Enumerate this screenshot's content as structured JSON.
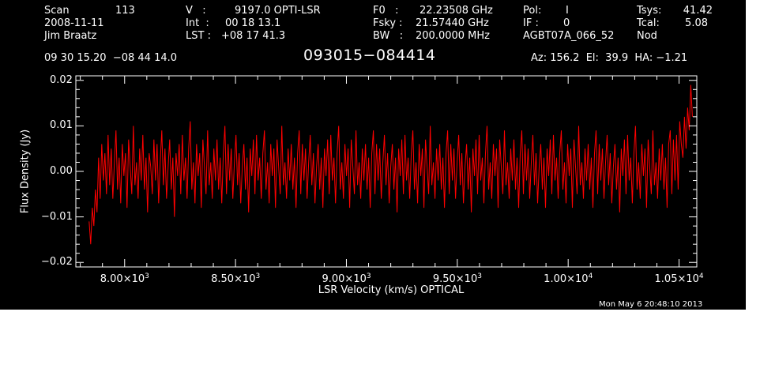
{
  "header": {
    "col1": {
      "scan_label": "Scan",
      "scan_value": "113",
      "date": "2008-11-11",
      "observer": "Jim Braatz"
    },
    "col2": {
      "v_label": "V   :",
      "v_value": "9197.0 OPTI-LSR",
      "int_label": "Int  :",
      "int_value": "00 18 13.1",
      "lst_label": "LST :",
      "lst_value": "+08 17 41.3"
    },
    "col3": {
      "f0_label": "F0   :",
      "f0_value": "22.23508 GHz",
      "fsky_label": "Fsky :",
      "fsky_value": "21.57440 GHz",
      "bw_label": "BW   :",
      "bw_value": "200.0000 MHz"
    },
    "col4": {
      "pol_label": "Pol:",
      "pol_value": "I",
      "if_label": "IF :",
      "if_value": "0",
      "project": "AGBT07A_066_52"
    },
    "col5": {
      "tsys_label": "Tsys:",
      "tsys_value": "41.42",
      "tcal_label": "Tcal:",
      "tcal_value": "5.08",
      "mode": "Nod"
    },
    "coords": "09 30 15.20  −08 44 14.0",
    "source": "093015−084414",
    "pointing": "Az: 156.2  El:  39.9  HA: −1.21"
  },
  "timestamp": "Mon May  6 20:48:10 2013",
  "colors": {
    "background": "#000000",
    "trace": "#ff0000",
    "axes": "#ffffff"
  },
  "chart_data": {
    "type": "line",
    "xlabel": "LSR Velocity (km/s) OPTICAL",
    "ylabel": "Flux Density (Jy)",
    "xlim": [
      7780,
      10580
    ],
    "ylim": [
      -0.021,
      0.021
    ],
    "x_ticks": [
      {
        "value": 8000,
        "mantissa": "8.00",
        "exp": "3"
      },
      {
        "value": 8500,
        "mantissa": "8.50",
        "exp": "3"
      },
      {
        "value": 9000,
        "mantissa": "9.00",
        "exp": "3"
      },
      {
        "value": 9500,
        "mantissa": "9.50",
        "exp": "3"
      },
      {
        "value": 10000,
        "mantissa": "1.00",
        "exp": "4"
      },
      {
        "value": 10500,
        "mantissa": "1.05",
        "exp": "4"
      }
    ],
    "y_ticks": [
      {
        "value": 0.02,
        "label": "0.02"
      },
      {
        "value": 0.01,
        "label": "0.01"
      },
      {
        "value": 0.0,
        "label": "0.00"
      },
      {
        "value": -0.01,
        "label": "−0.01"
      },
      {
        "value": -0.02,
        "label": "−0.02"
      }
    ],
    "series": [
      {
        "x_start": 7840,
        "x_end": 10560,
        "values": [
          -0.011,
          -0.016,
          -0.008,
          -0.012,
          -0.004,
          -0.009,
          0.003,
          -0.006,
          0.006,
          -0.002,
          0.004,
          -0.005,
          0.008,
          -0.003,
          0.005,
          -0.006,
          0.002,
          0.009,
          -0.004,
          0.003,
          -0.007,
          0.006,
          -0.001,
          0.004,
          -0.008,
          0.007,
          0.001,
          -0.005,
          0.01,
          -0.003,
          0.002,
          -0.006,
          0.005,
          -0.002,
          0.008,
          -0.004,
          0.003,
          -0.009,
          0.004,
          0.001,
          -0.005,
          0.007,
          -0.002,
          0.006,
          -0.007,
          0.002,
          0.009,
          -0.003,
          0.005,
          -0.006,
          0.001,
          0.007,
          -0.004,
          0.003,
          -0.01,
          0.004,
          -0.001,
          0.006,
          -0.005,
          0.008,
          -0.002,
          0.003,
          -0.006,
          0.005,
          0.011,
          -0.004,
          0.002,
          -0.007,
          0.006,
          -0.001,
          0.004,
          -0.008,
          0.007,
          0.001,
          -0.005,
          0.009,
          -0.003,
          0.002,
          -0.006,
          0.005,
          -0.002,
          0.007,
          -0.004,
          0.003,
          -0.007,
          0.004,
          0.01,
          -0.005,
          0.006,
          -0.002,
          0.005,
          -0.006,
          0.002,
          0.008,
          -0.003,
          0.004,
          -0.007,
          0.001,
          0.006,
          -0.004,
          0.003,
          -0.009,
          0.005,
          -0.001,
          0.007,
          -0.005,
          0.008,
          -0.002,
          0.003,
          -0.006,
          0.004,
          0.009,
          -0.004,
          0.002,
          -0.007,
          0.006,
          -0.001,
          0.005,
          -0.008,
          0.007,
          0.001,
          -0.005,
          0.01,
          -0.003,
          0.002,
          -0.006,
          0.005,
          -0.002,
          0.006,
          -0.004,
          0.003,
          -0.008,
          0.004,
          0.009,
          -0.005,
          0.006,
          -0.002,
          0.005,
          -0.006,
          0.002,
          0.008,
          -0.003,
          0.004,
          -0.007,
          0.001,
          0.006,
          -0.004,
          0.003,
          -0.008,
          0.005,
          -0.001,
          0.007,
          -0.005,
          0.008,
          -0.002,
          0.003,
          -0.007,
          0.004,
          0.01,
          -0.004,
          0.002,
          -0.006,
          0.006,
          -0.001,
          0.005,
          -0.008,
          0.007,
          0.001,
          -0.005,
          0.009,
          -0.003,
          0.002,
          -0.006,
          0.005,
          -0.002,
          0.006,
          -0.004,
          0.003,
          -0.008,
          0.004,
          0.009,
          -0.005,
          0.006,
          -0.002,
          0.005,
          -0.006,
          0.002,
          0.008,
          -0.003,
          0.004,
          -0.007,
          0.001,
          0.006,
          -0.004,
          0.003,
          -0.009,
          0.005,
          -0.001,
          0.007,
          -0.005,
          0.008,
          -0.002,
          0.003,
          -0.006,
          0.004,
          0.009,
          -0.004,
          0.002,
          -0.007,
          0.006,
          -0.001,
          0.005,
          -0.008,
          0.007,
          0.001,
          -0.005,
          0.01,
          -0.003,
          0.002,
          -0.006,
          0.005,
          -0.002,
          0.006,
          -0.004,
          0.003,
          -0.008,
          0.004,
          0.009,
          -0.005,
          0.006,
          -0.002,
          0.005,
          -0.006,
          0.002,
          0.008,
          -0.003,
          0.004,
          -0.007,
          0.001,
          0.006,
          -0.004,
          0.003,
          -0.009,
          0.005,
          -0.001,
          0.007,
          -0.005,
          0.008,
          -0.002,
          0.003,
          -0.007,
          0.004,
          0.01,
          -0.004,
          0.002,
          -0.006,
          0.006,
          -0.001,
          0.005,
          -0.008,
          0.007,
          0.001,
          -0.005,
          0.009,
          -0.003,
          0.002,
          -0.006,
          0.005,
          -0.002,
          0.007,
          -0.004,
          0.003,
          -0.008,
          0.004,
          0.009,
          -0.005,
          0.006,
          -0.002,
          0.005,
          -0.006,
          0.002,
          0.008,
          -0.003,
          0.004,
          -0.007,
          0.001,
          0.006,
          -0.004,
          0.003,
          -0.008,
          0.005,
          -0.001,
          0.007,
          -0.005,
          0.008,
          -0.002,
          0.003,
          -0.006,
          0.004,
          0.009,
          -0.004,
          0.002,
          -0.007,
          0.006,
          -0.001,
          0.005,
          -0.008,
          0.007,
          0.001,
          -0.005,
          0.01,
          -0.003,
          0.002,
          -0.006,
          0.005,
          -0.002,
          0.006,
          -0.004,
          0.003,
          -0.008,
          0.004,
          0.009,
          -0.005,
          0.006,
          -0.002,
          0.005,
          -0.006,
          0.002,
          0.008,
          -0.003,
          0.004,
          -0.007,
          0.001,
          0.006,
          -0.004,
          0.003,
          -0.009,
          0.005,
          -0.001,
          0.007,
          -0.005,
          0.008,
          -0.002,
          0.003,
          -0.007,
          0.004,
          0.01,
          -0.004,
          0.002,
          -0.006,
          0.006,
          -0.001,
          0.005,
          -0.008,
          0.007,
          0.001,
          -0.005,
          0.009,
          -0.003,
          0.002,
          -0.006,
          0.005,
          -0.002,
          0.006,
          -0.004,
          0.003,
          -0.008,
          0.006,
          0.009,
          -0.005,
          0.007,
          -0.002,
          0.008,
          -0.004,
          0.011,
          0.006,
          0.003,
          0.012,
          0.005,
          0.014,
          0.009,
          0.019,
          0.012
        ]
      }
    ]
  }
}
